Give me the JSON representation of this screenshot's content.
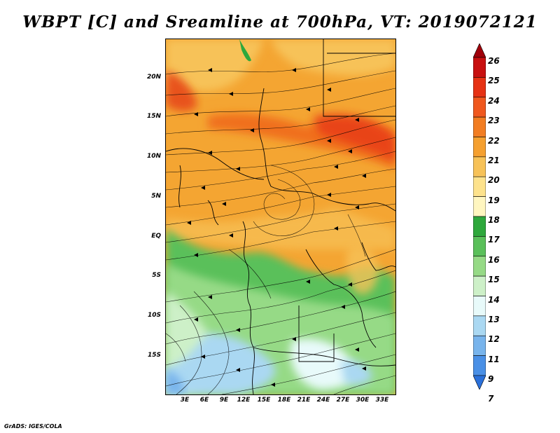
{
  "title": "WBPT [C] and Sreamline at 700hPa, VT: 2019072121",
  "credit": "GrADS: IGES/COLA",
  "map": {
    "lat_labels": [
      "20N",
      "15N",
      "10N",
      "5N",
      "EQ",
      "5S",
      "10S",
      "15S"
    ],
    "lon_labels": [
      "3E",
      "6E",
      "9E",
      "12E",
      "15E",
      "18E",
      "21E",
      "24E",
      "27E",
      "30E",
      "33E"
    ]
  },
  "colorbar": {
    "labels": [
      "26",
      "25",
      "24",
      "23",
      "22",
      "21",
      "20",
      "19",
      "18",
      "17",
      "16",
      "15",
      "14",
      "13",
      "12",
      "11",
      "9",
      "7"
    ],
    "colors": [
      "#a0000a",
      "#c81010",
      "#e63214",
      "#f0581e",
      "#f27d22",
      "#f5a030",
      "#f7c258",
      "#fde28c",
      "#fff6c0",
      "#2ea83c",
      "#5ac05a",
      "#96da86",
      "#cdf0c8",
      "#e8fafa",
      "#aad8f2",
      "#78b4ec",
      "#4a90e6",
      "#2a70da"
    ]
  }
}
